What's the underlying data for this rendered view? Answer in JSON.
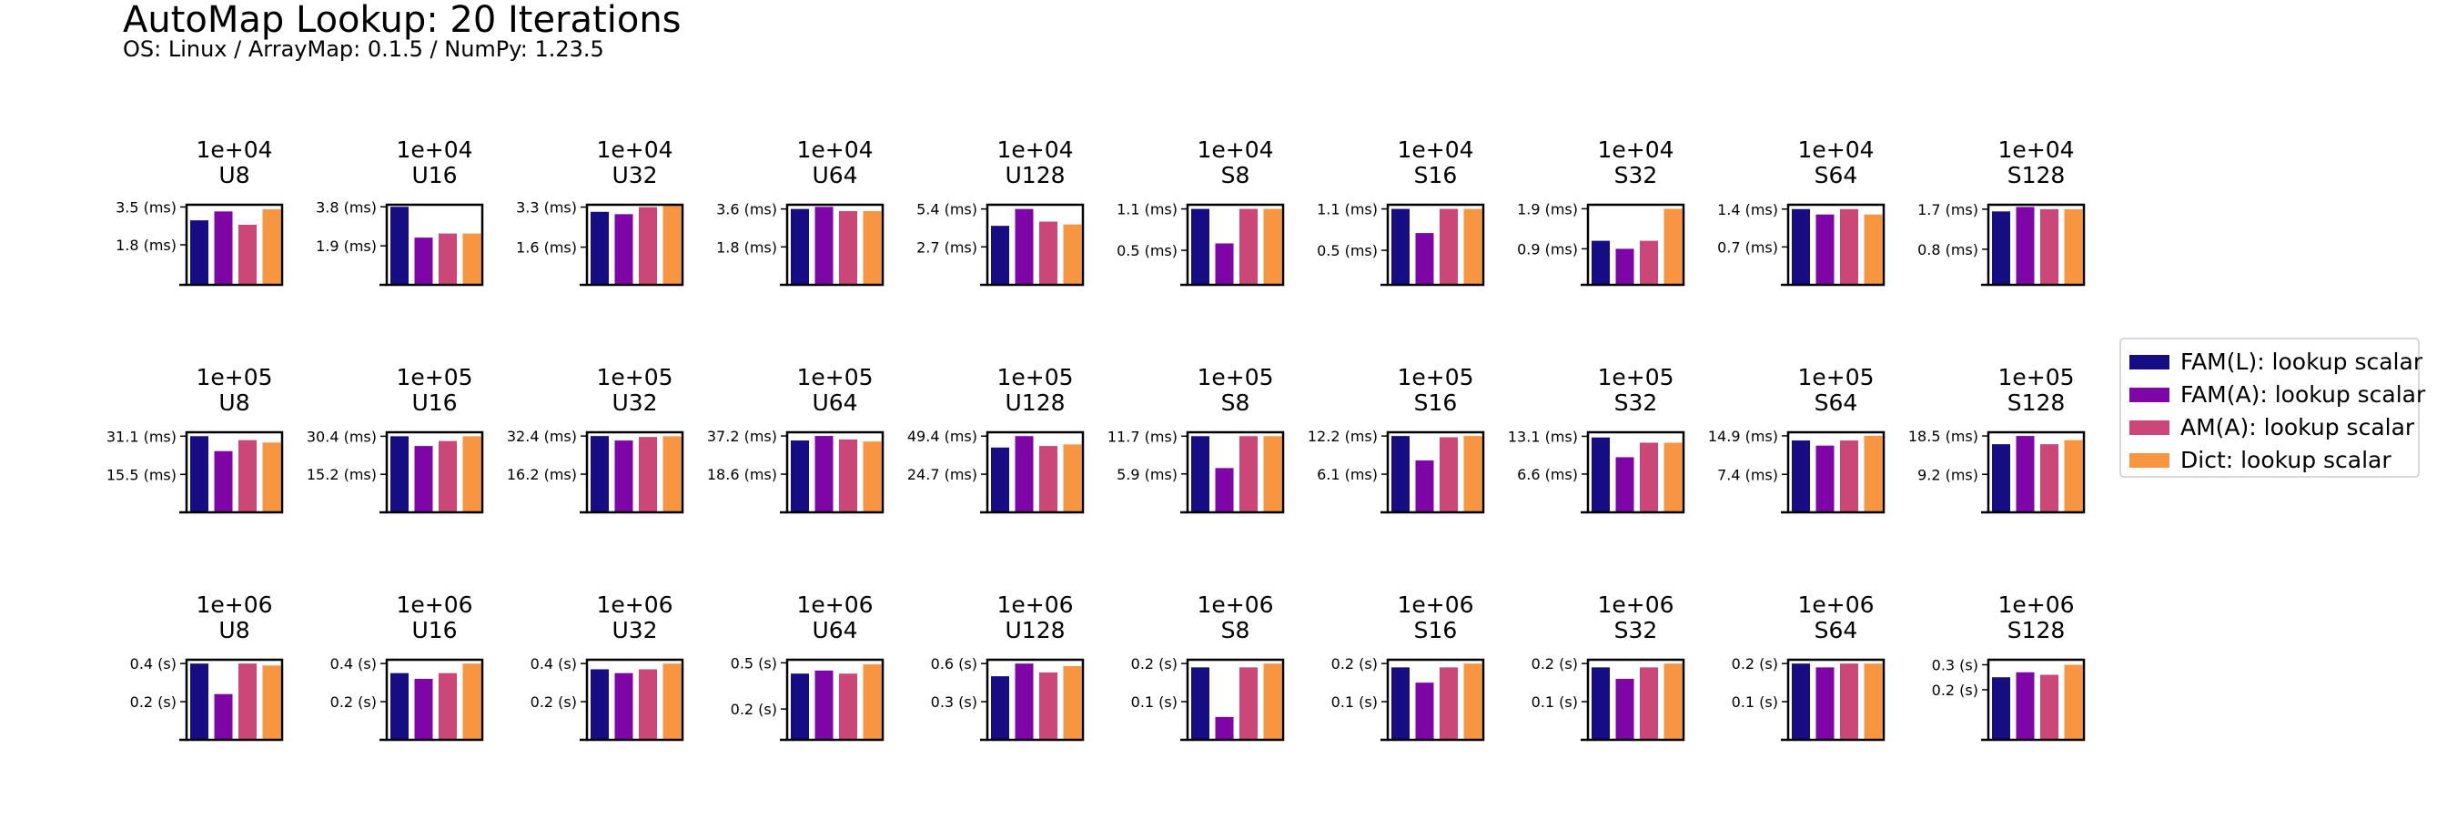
{
  "figure": {
    "title": "AutoMap Lookup: 20 Iterations",
    "subtitle": "OS: Linux / ArrayMap: 0.1.5 / NumPy: 1.23.5"
  },
  "legend": {
    "placement": "right",
    "items": [
      {
        "label": "FAM(L): lookup scalar",
        "color": "#160c83"
      },
      {
        "label": "FAM(A): lookup scalar",
        "color": "#7e06a6"
      },
      {
        "label": "AM(A): lookup scalar",
        "color": "#cb4778"
      },
      {
        "label": "Dict: lookup scalar",
        "color": "#f89540"
      }
    ]
  },
  "chart_data": [
    {
      "type": "bar",
      "title": "1e+04\nU8",
      "categories": [
        "FAM(L): lookup scalar",
        "FAM(A): lookup scalar",
        "AM(A): lookup scalar",
        "Dict: lookup scalar"
      ],
      "values": [
        2.9,
        3.3,
        2.7,
        3.4
      ],
      "ylim": [
        0,
        3.6
      ],
      "yticks": [
        1.8,
        3.5
      ],
      "yticklabels": [
        "1.8 (ms)",
        "3.5 (ms)"
      ],
      "unit": "ms"
    },
    {
      "type": "bar",
      "title": "1e+04\nU16",
      "categories": [
        "FAM(L): lookup scalar",
        "FAM(A): lookup scalar",
        "AM(A): lookup scalar",
        "Dict: lookup scalar"
      ],
      "values": [
        3.8,
        2.3,
        2.5,
        2.5
      ],
      "ylim": [
        0,
        3.9
      ],
      "yticks": [
        1.9,
        3.8
      ],
      "yticklabels": [
        "1.9 (ms)",
        "3.8 (ms)"
      ],
      "unit": "ms"
    },
    {
      "type": "bar",
      "title": "1e+04\nU32",
      "categories": [
        "FAM(L): lookup scalar",
        "FAM(A): lookup scalar",
        "AM(A): lookup scalar",
        "Dict: lookup scalar"
      ],
      "values": [
        3.1,
        3.0,
        3.3,
        3.4
      ],
      "ylim": [
        0,
        3.4
      ],
      "yticks": [
        1.6,
        3.3
      ],
      "yticklabels": [
        "1.6 (ms)",
        "3.3 (ms)"
      ],
      "unit": "ms"
    },
    {
      "type": "bar",
      "title": "1e+04\nU64",
      "categories": [
        "FAM(L): lookup scalar",
        "FAM(A): lookup scalar",
        "AM(A): lookup scalar",
        "Dict: lookup scalar"
      ],
      "values": [
        3.6,
        3.7,
        3.5,
        3.5
      ],
      "ylim": [
        0,
        3.8
      ],
      "yticks": [
        1.8,
        3.6
      ],
      "yticklabels": [
        "1.8 (ms)",
        "3.6 (ms)"
      ],
      "unit": "ms"
    },
    {
      "type": "bar",
      "title": "1e+04\nU128",
      "categories": [
        "FAM(L): lookup scalar",
        "FAM(A): lookup scalar",
        "AM(A): lookup scalar",
        "Dict: lookup scalar"
      ],
      "values": [
        4.2,
        5.4,
        4.5,
        4.3
      ],
      "ylim": [
        0,
        5.7
      ],
      "yticks": [
        2.7,
        5.4
      ],
      "yticklabels": [
        "2.7 (ms)",
        "5.4 (ms)"
      ],
      "unit": "ms"
    },
    {
      "type": "bar",
      "title": "1e+04\nS8",
      "categories": [
        "FAM(L): lookup scalar",
        "FAM(A): lookup scalar",
        "AM(A): lookup scalar",
        "Dict: lookup scalar"
      ],
      "values": [
        1.1,
        0.6,
        1.1,
        1.1
      ],
      "ylim": [
        0,
        1.16
      ],
      "yticks": [
        0.5,
        1.1
      ],
      "yticklabels": [
        "0.5 (ms)",
        "1.1 (ms)"
      ],
      "unit": "ms"
    },
    {
      "type": "bar",
      "title": "1e+04\nS16",
      "categories": [
        "FAM(L): lookup scalar",
        "FAM(A): lookup scalar",
        "AM(A): lookup scalar",
        "Dict: lookup scalar"
      ],
      "values": [
        1.1,
        0.75,
        1.1,
        1.1
      ],
      "ylim": [
        0,
        1.16
      ],
      "yticks": [
        0.5,
        1.1
      ],
      "yticklabels": [
        "0.5 (ms)",
        "1.1 (ms)"
      ],
      "unit": "ms"
    },
    {
      "type": "bar",
      "title": "1e+04\nS32",
      "categories": [
        "FAM(L): lookup scalar",
        "FAM(A): lookup scalar",
        "AM(A): lookup scalar",
        "Dict: lookup scalar"
      ],
      "values": [
        1.1,
        0.9,
        1.1,
        1.9
      ],
      "ylim": [
        0,
        2.0
      ],
      "yticks": [
        0.9,
        1.9
      ],
      "yticklabels": [
        "0.9 (ms)",
        "1.9 (ms)"
      ],
      "unit": "ms"
    },
    {
      "type": "bar",
      "title": "1e+04\nS64",
      "categories": [
        "FAM(L): lookup scalar",
        "FAM(A): lookup scalar",
        "AM(A): lookup scalar",
        "Dict: lookup scalar"
      ],
      "values": [
        1.4,
        1.3,
        1.4,
        1.3
      ],
      "ylim": [
        0,
        1.48
      ],
      "yticks": [
        0.7,
        1.4
      ],
      "yticklabels": [
        "0.7 (ms)",
        "1.4 (ms)"
      ],
      "unit": "ms"
    },
    {
      "type": "bar",
      "title": "1e+04\nS128",
      "categories": [
        "FAM(L): lookup scalar",
        "FAM(A): lookup scalar",
        "AM(A): lookup scalar",
        "Dict: lookup scalar"
      ],
      "values": [
        1.65,
        1.75,
        1.7,
        1.7
      ],
      "ylim": [
        0,
        1.8
      ],
      "yticks": [
        0.8,
        1.7
      ],
      "yticklabels": [
        "0.8 (ms)",
        "1.7 (ms)"
      ],
      "unit": "ms"
    },
    {
      "type": "bar",
      "title": "1e+05\nU8",
      "categories": [
        "FAM(L): lookup scalar",
        "FAM(A): lookup scalar",
        "AM(A): lookup scalar",
        "Dict: lookup scalar"
      ],
      "values": [
        31.1,
        25.0,
        29.5,
        28.5
      ],
      "ylim": [
        0,
        32.7
      ],
      "yticks": [
        15.5,
        31.1
      ],
      "yticklabels": [
        "15.5 (ms)",
        "31.1 (ms)"
      ],
      "unit": "ms"
    },
    {
      "type": "bar",
      "title": "1e+05\nU16",
      "categories": [
        "FAM(L): lookup scalar",
        "FAM(A): lookup scalar",
        "AM(A): lookup scalar",
        "Dict: lookup scalar"
      ],
      "values": [
        30.4,
        26.5,
        28.5,
        30.4
      ],
      "ylim": [
        0,
        32.0
      ],
      "yticks": [
        15.2,
        30.4
      ],
      "yticklabels": [
        "15.2 (ms)",
        "30.4 (ms)"
      ],
      "unit": "ms"
    },
    {
      "type": "bar",
      "title": "1e+05\nU32",
      "categories": [
        "FAM(L): lookup scalar",
        "FAM(A): lookup scalar",
        "AM(A): lookup scalar",
        "Dict: lookup scalar"
      ],
      "values": [
        32.4,
        30.5,
        32.0,
        32.3
      ],
      "ylim": [
        0,
        34.0
      ],
      "yticks": [
        16.2,
        32.4
      ],
      "yticklabels": [
        "16.2 (ms)",
        "32.4 (ms)"
      ],
      "unit": "ms"
    },
    {
      "type": "bar",
      "title": "1e+05\nU64",
      "categories": [
        "FAM(L): lookup scalar",
        "FAM(A): lookup scalar",
        "AM(A): lookup scalar",
        "Dict: lookup scalar"
      ],
      "values": [
        35.0,
        37.2,
        35.5,
        34.5
      ],
      "ylim": [
        0,
        39.0
      ],
      "yticks": [
        18.6,
        37.2
      ],
      "yticklabels": [
        "18.6 (ms)",
        "37.2 (ms)"
      ],
      "unit": "ms"
    },
    {
      "type": "bar",
      "title": "1e+05\nU128",
      "categories": [
        "FAM(L): lookup scalar",
        "FAM(A): lookup scalar",
        "AM(A): lookup scalar",
        "Dict: lookup scalar"
      ],
      "values": [
        42.0,
        49.4,
        43.0,
        44.0
      ],
      "ylim": [
        0,
        51.9
      ],
      "yticks": [
        24.7,
        49.4
      ],
      "yticklabels": [
        "24.7 (ms)",
        "49.4 (ms)"
      ],
      "unit": "ms"
    },
    {
      "type": "bar",
      "title": "1e+05\nS8",
      "categories": [
        "FAM(L): lookup scalar",
        "FAM(A): lookup scalar",
        "AM(A): lookup scalar",
        "Dict: lookup scalar"
      ],
      "values": [
        11.7,
        6.8,
        11.7,
        11.7
      ],
      "ylim": [
        0,
        12.3
      ],
      "yticks": [
        5.9,
        11.7
      ],
      "yticklabels": [
        "5.9 (ms)",
        "11.7 (ms)"
      ],
      "unit": "ms"
    },
    {
      "type": "bar",
      "title": "1e+05\nS16",
      "categories": [
        "FAM(L): lookup scalar",
        "FAM(A): lookup scalar",
        "AM(A): lookup scalar",
        "Dict: lookup scalar"
      ],
      "values": [
        12.2,
        8.3,
        12.0,
        12.2
      ],
      "ylim": [
        0,
        12.8
      ],
      "yticks": [
        6.1,
        12.2
      ],
      "yticklabels": [
        "6.1 (ms)",
        "12.2 (ms)"
      ],
      "unit": "ms"
    },
    {
      "type": "bar",
      "title": "1e+05\nS32",
      "categories": [
        "FAM(L): lookup scalar",
        "FAM(A): lookup scalar",
        "AM(A): lookup scalar",
        "Dict: lookup scalar"
      ],
      "values": [
        12.9,
        9.5,
        12.0,
        12.0
      ],
      "ylim": [
        0,
        13.8
      ],
      "yticks": [
        6.6,
        13.1
      ],
      "yticklabels": [
        "6.6 (ms)",
        "13.1 (ms)"
      ],
      "unit": "ms"
    },
    {
      "type": "bar",
      "title": "1e+05\nS64",
      "categories": [
        "FAM(L): lookup scalar",
        "FAM(A): lookup scalar",
        "AM(A): lookup scalar",
        "Dict: lookup scalar"
      ],
      "values": [
        14.0,
        13.0,
        14.0,
        14.9
      ],
      "ylim": [
        0,
        15.6
      ],
      "yticks": [
        7.4,
        14.9
      ],
      "yticklabels": [
        "7.4 (ms)",
        "14.9 (ms)"
      ],
      "unit": "ms"
    },
    {
      "type": "bar",
      "title": "1e+05\nS128",
      "categories": [
        "FAM(L): lookup scalar",
        "FAM(A): lookup scalar",
        "AM(A): lookup scalar",
        "Dict: lookup scalar"
      ],
      "values": [
        16.5,
        18.5,
        16.5,
        17.5
      ],
      "ylim": [
        0,
        19.4
      ],
      "yticks": [
        9.2,
        18.5
      ],
      "yticklabels": [
        "9.2 (ms)",
        "18.5 (ms)"
      ],
      "unit": "ms"
    },
    {
      "type": "bar",
      "title": "1e+06\nU8",
      "categories": [
        "FAM(L): lookup scalar",
        "FAM(A): lookup scalar",
        "AM(A): lookup scalar",
        "Dict: lookup scalar"
      ],
      "values": [
        0.4,
        0.24,
        0.4,
        0.39
      ],
      "ylim": [
        0,
        0.42
      ],
      "yticks": [
        0.2,
        0.4
      ],
      "yticklabels": [
        "0.2 (s)",
        "0.4 (s)"
      ],
      "unit": "s"
    },
    {
      "type": "bar",
      "title": "1e+06\nU16",
      "categories": [
        "FAM(L): lookup scalar",
        "FAM(A): lookup scalar",
        "AM(A): lookup scalar",
        "Dict: lookup scalar"
      ],
      "values": [
        0.35,
        0.32,
        0.35,
        0.4
      ],
      "ylim": [
        0,
        0.42
      ],
      "yticks": [
        0.2,
        0.4
      ],
      "yticklabels": [
        "0.2 (s)",
        "0.4 (s)"
      ],
      "unit": "s"
    },
    {
      "type": "bar",
      "title": "1e+06\nU32",
      "categories": [
        "FAM(L): lookup scalar",
        "FAM(A): lookup scalar",
        "AM(A): lookup scalar",
        "Dict: lookup scalar"
      ],
      "values": [
        0.37,
        0.35,
        0.37,
        0.4
      ],
      "ylim": [
        0,
        0.42
      ],
      "yticks": [
        0.2,
        0.4
      ],
      "yticklabels": [
        "0.2 (s)",
        "0.4 (s)"
      ],
      "unit": "s"
    },
    {
      "type": "bar",
      "title": "1e+06\nU64",
      "categories": [
        "FAM(L): lookup scalar",
        "FAM(A): lookup scalar",
        "AM(A): lookup scalar",
        "Dict: lookup scalar"
      ],
      "values": [
        0.43,
        0.45,
        0.43,
        0.49
      ],
      "ylim": [
        0,
        0.52
      ],
      "yticks": [
        0.2,
        0.5
      ],
      "yticklabels": [
        "0.2 (s)",
        "0.5 (s)"
      ],
      "unit": "s"
    },
    {
      "type": "bar",
      "title": "1e+06\nU128",
      "categories": [
        "FAM(L): lookup scalar",
        "FAM(A): lookup scalar",
        "AM(A): lookup scalar",
        "Dict: lookup scalar"
      ],
      "values": [
        0.5,
        0.6,
        0.53,
        0.58
      ],
      "ylim": [
        0,
        0.63
      ],
      "yticks": [
        0.3,
        0.6
      ],
      "yticklabels": [
        "0.3 (s)",
        "0.6 (s)"
      ],
      "unit": "s"
    },
    {
      "type": "bar",
      "title": "1e+06\nS8",
      "categories": [
        "FAM(L): lookup scalar",
        "FAM(A): lookup scalar",
        "AM(A): lookup scalar",
        "Dict: lookup scalar"
      ],
      "values": [
        0.19,
        0.06,
        0.19,
        0.2
      ],
      "ylim": [
        0,
        0.21
      ],
      "yticks": [
        0.1,
        0.2
      ],
      "yticklabels": [
        "0.1 (s)",
        "0.2 (s)"
      ],
      "unit": "s"
    },
    {
      "type": "bar",
      "title": "1e+06\nS16",
      "categories": [
        "FAM(L): lookup scalar",
        "FAM(A): lookup scalar",
        "AM(A): lookup scalar",
        "Dict: lookup scalar"
      ],
      "values": [
        0.19,
        0.15,
        0.19,
        0.2
      ],
      "ylim": [
        0,
        0.21
      ],
      "yticks": [
        0.1,
        0.2
      ],
      "yticklabels": [
        "0.1 (s)",
        "0.2 (s)"
      ],
      "unit": "s"
    },
    {
      "type": "bar",
      "title": "1e+06\nS32",
      "categories": [
        "FAM(L): lookup scalar",
        "FAM(A): lookup scalar",
        "AM(A): lookup scalar",
        "Dict: lookup scalar"
      ],
      "values": [
        0.19,
        0.16,
        0.19,
        0.2
      ],
      "ylim": [
        0,
        0.21
      ],
      "yticks": [
        0.1,
        0.2
      ],
      "yticklabels": [
        "0.1 (s)",
        "0.2 (s)"
      ],
      "unit": "s"
    },
    {
      "type": "bar",
      "title": "1e+06\nS64",
      "categories": [
        "FAM(L): lookup scalar",
        "FAM(A): lookup scalar",
        "AM(A): lookup scalar",
        "Dict: lookup scalar"
      ],
      "values": [
        0.2,
        0.19,
        0.2,
        0.2
      ],
      "ylim": [
        0,
        0.21
      ],
      "yticks": [
        0.1,
        0.2
      ],
      "yticklabels": [
        "0.1 (s)",
        "0.2 (s)"
      ],
      "unit": "s"
    },
    {
      "type": "bar",
      "title": "1e+06\nS128",
      "categories": [
        "FAM(L): lookup scalar",
        "FAM(A): lookup scalar",
        "AM(A): lookup scalar",
        "Dict: lookup scalar"
      ],
      "values": [
        0.25,
        0.27,
        0.26,
        0.3
      ],
      "ylim": [
        0,
        0.32
      ],
      "yticks": [
        0.2,
        0.3
      ],
      "yticklabels": [
        "0.2 (s)",
        "0.3 (s)"
      ],
      "unit": "s"
    }
  ]
}
